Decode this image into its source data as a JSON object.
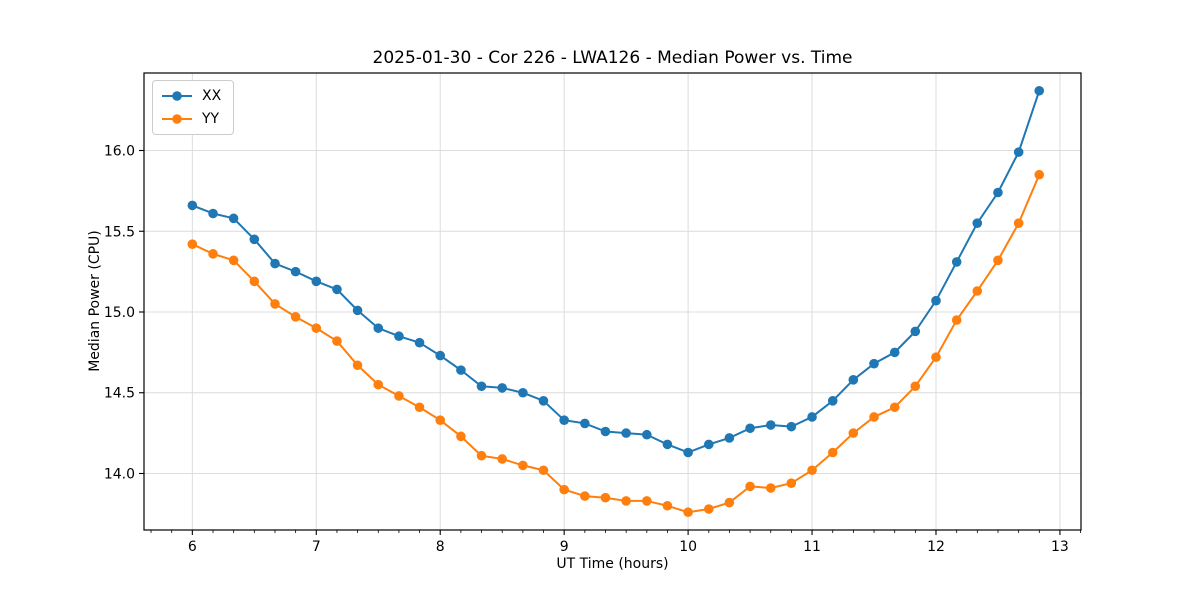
{
  "chart_data": {
    "type": "line",
    "title": "2025-01-30 - Cor 226 - LWA126 - Median Power vs. Time",
    "xlabel": "UT Time (hours)",
    "ylabel": "Median Power (CPU)",
    "xlim": [
      5.61,
      13.17
    ],
    "ylim": [
      13.65,
      16.48
    ],
    "x_ticks": [
      6,
      7,
      8,
      9,
      10,
      11,
      12,
      13
    ],
    "y_ticks": [
      14.0,
      14.5,
      15.0,
      15.5,
      16.0
    ],
    "x_minor_interval": 0.16667,
    "grid": true,
    "legend_position": "upper left",
    "x": [
      6.0,
      6.167,
      6.333,
      6.5,
      6.667,
      6.833,
      7.0,
      7.167,
      7.333,
      7.5,
      7.667,
      7.833,
      8.0,
      8.167,
      8.333,
      8.5,
      8.667,
      8.833,
      9.0,
      9.167,
      9.333,
      9.5,
      9.667,
      9.833,
      10.0,
      10.167,
      10.333,
      10.5,
      10.667,
      10.833,
      11.0,
      11.167,
      11.333,
      11.5,
      11.667,
      11.833,
      12.0,
      12.167,
      12.333,
      12.5,
      12.667,
      12.833
    ],
    "series": [
      {
        "name": "XX",
        "color": "#1f77b4",
        "values": [
          15.66,
          15.61,
          15.58,
          15.45,
          15.3,
          15.25,
          15.19,
          15.14,
          15.01,
          14.9,
          14.85,
          14.81,
          14.73,
          14.64,
          14.54,
          14.53,
          14.5,
          14.45,
          14.33,
          14.31,
          14.26,
          14.25,
          14.24,
          14.18,
          14.13,
          14.18,
          14.22,
          14.28,
          14.3,
          14.29,
          14.35,
          14.45,
          14.58,
          14.68,
          14.75,
          14.88,
          15.07,
          15.31,
          15.55,
          15.74,
          15.99,
          16.37
        ]
      },
      {
        "name": "YY",
        "color": "#ff7f0e",
        "values": [
          15.42,
          15.36,
          15.32,
          15.19,
          15.05,
          14.97,
          14.9,
          14.82,
          14.67,
          14.55,
          14.48,
          14.41,
          14.33,
          14.23,
          14.11,
          14.09,
          14.05,
          14.02,
          13.9,
          13.86,
          13.85,
          13.83,
          13.83,
          13.8,
          13.76,
          13.78,
          13.82,
          13.92,
          13.91,
          13.94,
          14.02,
          14.13,
          14.25,
          14.35,
          14.41,
          14.54,
          14.72,
          14.95,
          15.13,
          15.32,
          15.55,
          15.85
        ]
      }
    ]
  }
}
